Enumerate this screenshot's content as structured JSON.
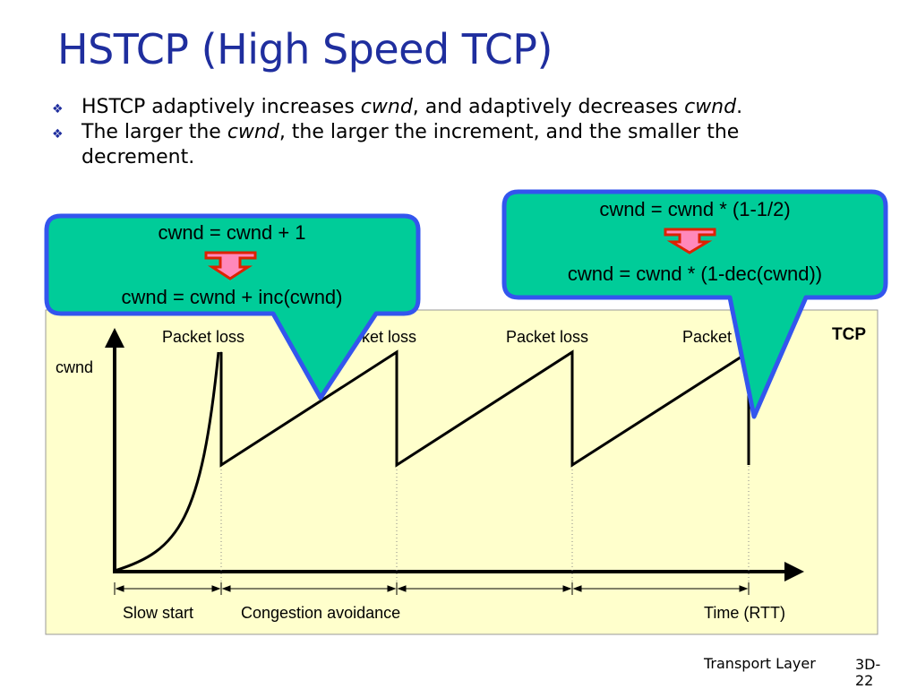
{
  "slide": {
    "title": "HSTCP (High Speed TCP)",
    "bullets": [
      {
        "before": "HSTCP adaptively increases ",
        "em1": "cwnd",
        "middle": ", and adaptively decreases ",
        "em2": "cwnd",
        "after": "."
      },
      {
        "before": "The larger the ",
        "em1": "cwnd",
        "after": ", the larger the increment, and the smaller the decrement."
      }
    ],
    "footer": "Transport Layer",
    "page_number": "3D-22"
  },
  "diagram": {
    "y_axis_label": "cwnd",
    "x_axis_label": "Time (RTT)",
    "corner_label": "TCP",
    "loss_labels": [
      "Packet loss",
      "Packet loss",
      "Packet loss",
      "Packet loss"
    ],
    "phase_labels": [
      "Slow start",
      "Congestion avoidance"
    ],
    "callout_increase": {
      "line1": "cwnd = cwnd + 1",
      "line2": "cwnd = cwnd + inc(cwnd)"
    },
    "callout_decrease": {
      "line1": "cwnd = cwnd * (1-1/2)",
      "line2": "cwnd = cwnd * (1-dec(cwnd))"
    },
    "colors": {
      "plot_background": "#ffffcc",
      "callout_fill": "#00cc99",
      "callout_border": "#3355ee",
      "arrow_fill": "#ff88bb",
      "arrow_border": "#dd2200",
      "title": "#1f2e9e"
    }
  }
}
